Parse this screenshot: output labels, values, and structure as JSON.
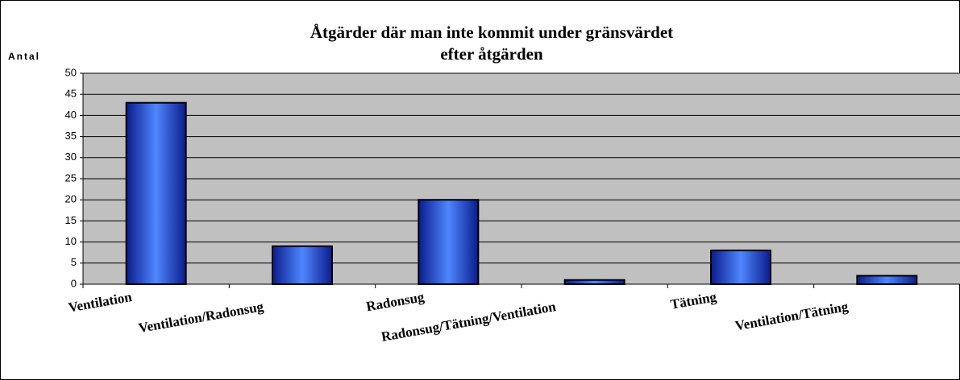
{
  "chart_data": {
    "type": "bar",
    "title": [
      "Åtgärder där man inte kommit under gränsvärdet",
      "efter åtgärden"
    ],
    "y_label": "Antal",
    "categories": [
      "Ventilation",
      "Ventilation/Radonsug",
      "Radonsug",
      "Radonsug/Tätning/Ventilation",
      "Tätning",
      "Ventilation/Tätning"
    ],
    "values": [
      43,
      9,
      20,
      1,
      8,
      2
    ],
    "color": "#2f5fe8",
    "ylim": [
      0,
      50
    ],
    "yticks": [
      0,
      5,
      10,
      15,
      20,
      25,
      30,
      35,
      40,
      45,
      50
    ],
    "grid": true
  }
}
